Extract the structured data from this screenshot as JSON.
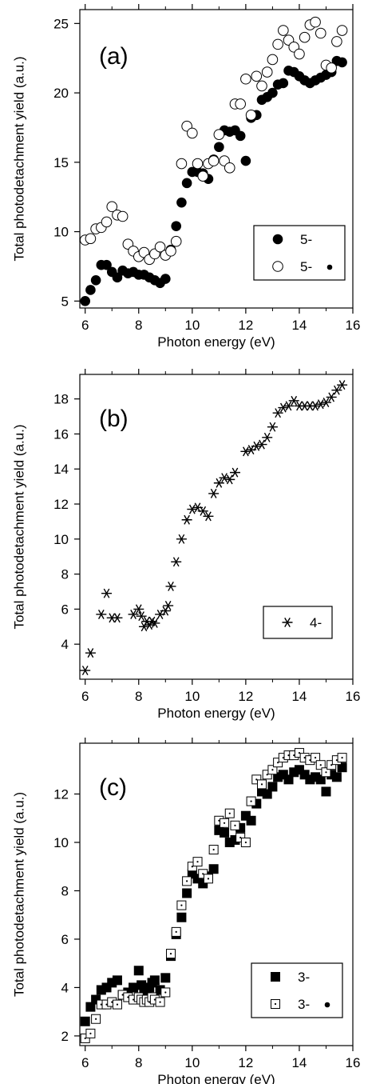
{
  "chart_data": [
    {
      "type": "scatter",
      "panel_label": "(a)",
      "xlabel": "Photon energy (eV)",
      "ylabel": "Total photodetachment yield (a.u.)",
      "xlim": [
        5.8,
        16.0
      ],
      "ylim": [
        4.5,
        26.0
      ],
      "xticks": [
        6,
        8,
        10,
        12,
        14,
        16
      ],
      "yticks": [
        5,
        10,
        15,
        20,
        25
      ],
      "legend_position": "bottom-right",
      "series": [
        {
          "name": "5-",
          "marker": "filled-circle",
          "color": "#000000",
          "x": [
            6.0,
            6.2,
            6.4,
            6.6,
            6.8,
            7.0,
            7.2,
            7.4,
            7.6,
            7.8,
            8.0,
            8.2,
            8.4,
            8.6,
            8.8,
            9.0,
            9.2,
            9.4,
            9.6,
            9.8,
            10.0,
            10.2,
            10.4,
            10.6,
            10.8,
            11.0,
            11.2,
            11.4,
            11.6,
            11.8,
            12.0,
            12.2,
            12.4,
            12.6,
            12.8,
            13.0,
            13.2,
            13.4,
            13.6,
            13.8,
            14.0,
            14.2,
            14.4,
            14.6,
            14.8,
            15.0,
            15.2,
            15.4,
            15.6
          ],
          "y": [
            5.0,
            5.8,
            6.5,
            7.6,
            7.6,
            7.1,
            6.7,
            7.2,
            7.0,
            7.1,
            6.9,
            6.9,
            6.7,
            6.5,
            6.3,
            6.6,
            8.7,
            10.4,
            12.1,
            13.5,
            14.3,
            14.3,
            14.2,
            13.8,
            15.2,
            16.1,
            17.3,
            17.2,
            17.3,
            16.9,
            15.1,
            18.2,
            18.4,
            19.5,
            19.7,
            20.0,
            20.6,
            20.7,
            21.6,
            21.5,
            21.2,
            20.9,
            20.7,
            20.9,
            21.1,
            21.3,
            21.5,
            22.3,
            22.2
          ]
        },
        {
          "name": "5- •",
          "marker": "open-circle",
          "color": "#000000",
          "x": [
            6.0,
            6.2,
            6.4,
            6.6,
            6.8,
            7.0,
            7.2,
            7.4,
            7.6,
            7.8,
            8.0,
            8.2,
            8.4,
            8.6,
            8.8,
            9.0,
            9.2,
            9.4,
            9.6,
            9.8,
            10.0,
            10.2,
            10.4,
            10.6,
            10.8,
            11.0,
            11.2,
            11.4,
            11.6,
            11.8,
            12.0,
            12.2,
            12.4,
            12.6,
            12.8,
            13.0,
            13.2,
            13.4,
            13.6,
            13.8,
            14.0,
            14.2,
            14.4,
            14.6,
            14.8,
            15.0,
            15.2,
            15.4,
            15.6
          ],
          "y": [
            9.4,
            9.5,
            10.2,
            10.3,
            10.7,
            11.8,
            11.2,
            11.1,
            9.1,
            8.6,
            8.2,
            8.5,
            8.0,
            8.4,
            8.9,
            8.3,
            8.6,
            9.3,
            14.9,
            17.6,
            17.1,
            14.9,
            14.0,
            14.9,
            15.1,
            17.0,
            15.1,
            14.6,
            19.2,
            19.2,
            21.0,
            18.4,
            21.2,
            20.5,
            21.5,
            22.4,
            23.5,
            24.5,
            23.8,
            23.3,
            22.8,
            24.0,
            24.9,
            25.1,
            24.3,
            22.0,
            21.8,
            23.7,
            24.5
          ]
        }
      ]
    },
    {
      "type": "scatter",
      "panel_label": "(b)",
      "xlabel": "Photon energy (eV)",
      "ylabel": "Total photodetachment yield (a.u.)",
      "xlim": [
        5.8,
        16.0
      ],
      "ylim": [
        2.0,
        19.4
      ],
      "xticks": [
        6,
        8,
        10,
        12,
        14,
        16
      ],
      "yticks": [
        4,
        6,
        8,
        10,
        12,
        14,
        16,
        18
      ],
      "legend_position": "bottom-right",
      "series": [
        {
          "name": "4-",
          "marker": "asterisk",
          "color": "#000000",
          "x": [
            6.0,
            6.2,
            6.6,
            6.8,
            7.0,
            7.2,
            7.8,
            8.0,
            8.1,
            8.2,
            8.3,
            8.4,
            8.5,
            8.6,
            8.8,
            9.0,
            9.1,
            9.2,
            9.4,
            9.6,
            9.8,
            10.0,
            10.2,
            10.4,
            10.6,
            10.8,
            11.0,
            11.2,
            11.4,
            11.6,
            12.0,
            12.2,
            12.4,
            12.6,
            12.8,
            13.0,
            13.2,
            13.4,
            13.6,
            13.8,
            14.0,
            14.2,
            14.4,
            14.6,
            14.8,
            15.0,
            15.2,
            15.4,
            15.6
          ],
          "y": [
            2.5,
            3.5,
            5.7,
            6.9,
            5.5,
            5.5,
            5.7,
            6.0,
            5.6,
            5.0,
            5.3,
            5.1,
            5.3,
            5.2,
            5.7,
            5.9,
            6.2,
            7.3,
            8.7,
            10.0,
            11.1,
            11.7,
            11.8,
            11.6,
            11.3,
            12.6,
            13.2,
            13.5,
            13.4,
            13.8,
            15.0,
            15.1,
            15.3,
            15.4,
            15.8,
            16.4,
            17.2,
            17.5,
            17.6,
            17.9,
            17.6,
            17.6,
            17.6,
            17.6,
            17.7,
            17.8,
            18.1,
            18.5,
            18.8
          ]
        }
      ]
    },
    {
      "type": "scatter",
      "panel_label": "(c)",
      "xlabel": "Photon energy (eV)",
      "ylabel": "Total photodetachment yield (a.u.)",
      "xlim": [
        5.8,
        16.0
      ],
      "ylim": [
        1.6,
        14.1
      ],
      "xticks": [
        6,
        8,
        10,
        12,
        14,
        16
      ],
      "yticks": [
        2,
        4,
        6,
        8,
        10,
        12
      ],
      "legend_position": "bottom-right",
      "series": [
        {
          "name": "3-",
          "marker": "filled-square",
          "color": "#000000",
          "x": [
            6.0,
            6.2,
            6.4,
            6.6,
            6.8,
            7.0,
            7.2,
            7.4,
            7.6,
            7.8,
            8.0,
            8.1,
            8.2,
            8.3,
            8.4,
            8.5,
            8.6,
            8.8,
            9.0,
            9.2,
            9.4,
            9.6,
            9.8,
            10.0,
            10.2,
            10.4,
            10.6,
            10.8,
            11.0,
            11.2,
            11.4,
            11.6,
            11.8,
            12.0,
            12.2,
            12.4,
            12.6,
            12.8,
            13.0,
            13.2,
            13.4,
            13.6,
            13.8,
            14.0,
            14.2,
            14.4,
            14.6,
            14.8,
            15.0,
            15.2,
            15.4,
            15.6
          ],
          "y": [
            2.6,
            3.2,
            3.5,
            3.9,
            4.0,
            4.2,
            4.3,
            3.7,
            3.8,
            4.0,
            4.7,
            4.1,
            3.8,
            3.7,
            4.0,
            4.2,
            4.3,
            3.9,
            4.4,
            5.3,
            6.2,
            6.9,
            7.9,
            8.7,
            8.5,
            8.3,
            8.6,
            8.9,
            10.5,
            10.4,
            10.0,
            10.1,
            10.6,
            11.1,
            10.9,
            11.6,
            12.1,
            12.0,
            12.3,
            12.7,
            12.8,
            12.6,
            12.9,
            13.0,
            12.8,
            12.6,
            12.7,
            12.6,
            12.1,
            12.8,
            12.7,
            13.1
          ]
        },
        {
          "name": "3- •",
          "marker": "open-square-dot",
          "color": "#000000",
          "x": [
            6.0,
            6.2,
            6.4,
            6.6,
            6.8,
            7.0,
            7.2,
            7.4,
            7.6,
            7.8,
            8.0,
            8.1,
            8.2,
            8.3,
            8.4,
            8.5,
            8.6,
            8.8,
            9.0,
            9.2,
            9.4,
            9.6,
            9.8,
            10.0,
            10.2,
            10.4,
            10.6,
            10.8,
            11.0,
            11.2,
            11.4,
            11.6,
            11.8,
            12.0,
            12.2,
            12.4,
            12.6,
            12.8,
            13.0,
            13.2,
            13.4,
            13.6,
            13.8,
            14.0,
            14.2,
            14.4,
            14.6,
            14.8,
            15.0,
            15.2,
            15.4,
            15.6
          ],
          "y": [
            1.9,
            2.1,
            2.7,
            3.3,
            3.3,
            3.4,
            3.3,
            3.7,
            3.6,
            3.5,
            3.6,
            3.5,
            3.4,
            3.5,
            3.4,
            3.6,
            3.5,
            3.4,
            3.8,
            5.4,
            6.3,
            7.4,
            8.4,
            9.0,
            9.2,
            8.7,
            8.5,
            9.7,
            10.9,
            10.8,
            11.2,
            10.7,
            10.2,
            10.0,
            11.7,
            12.6,
            12.4,
            12.8,
            13.0,
            13.3,
            13.5,
            13.6,
            13.6,
            13.7,
            13.5,
            13.4,
            13.5,
            13.2,
            12.9,
            13.2,
            13.4,
            13.5
          ]
        }
      ]
    }
  ]
}
